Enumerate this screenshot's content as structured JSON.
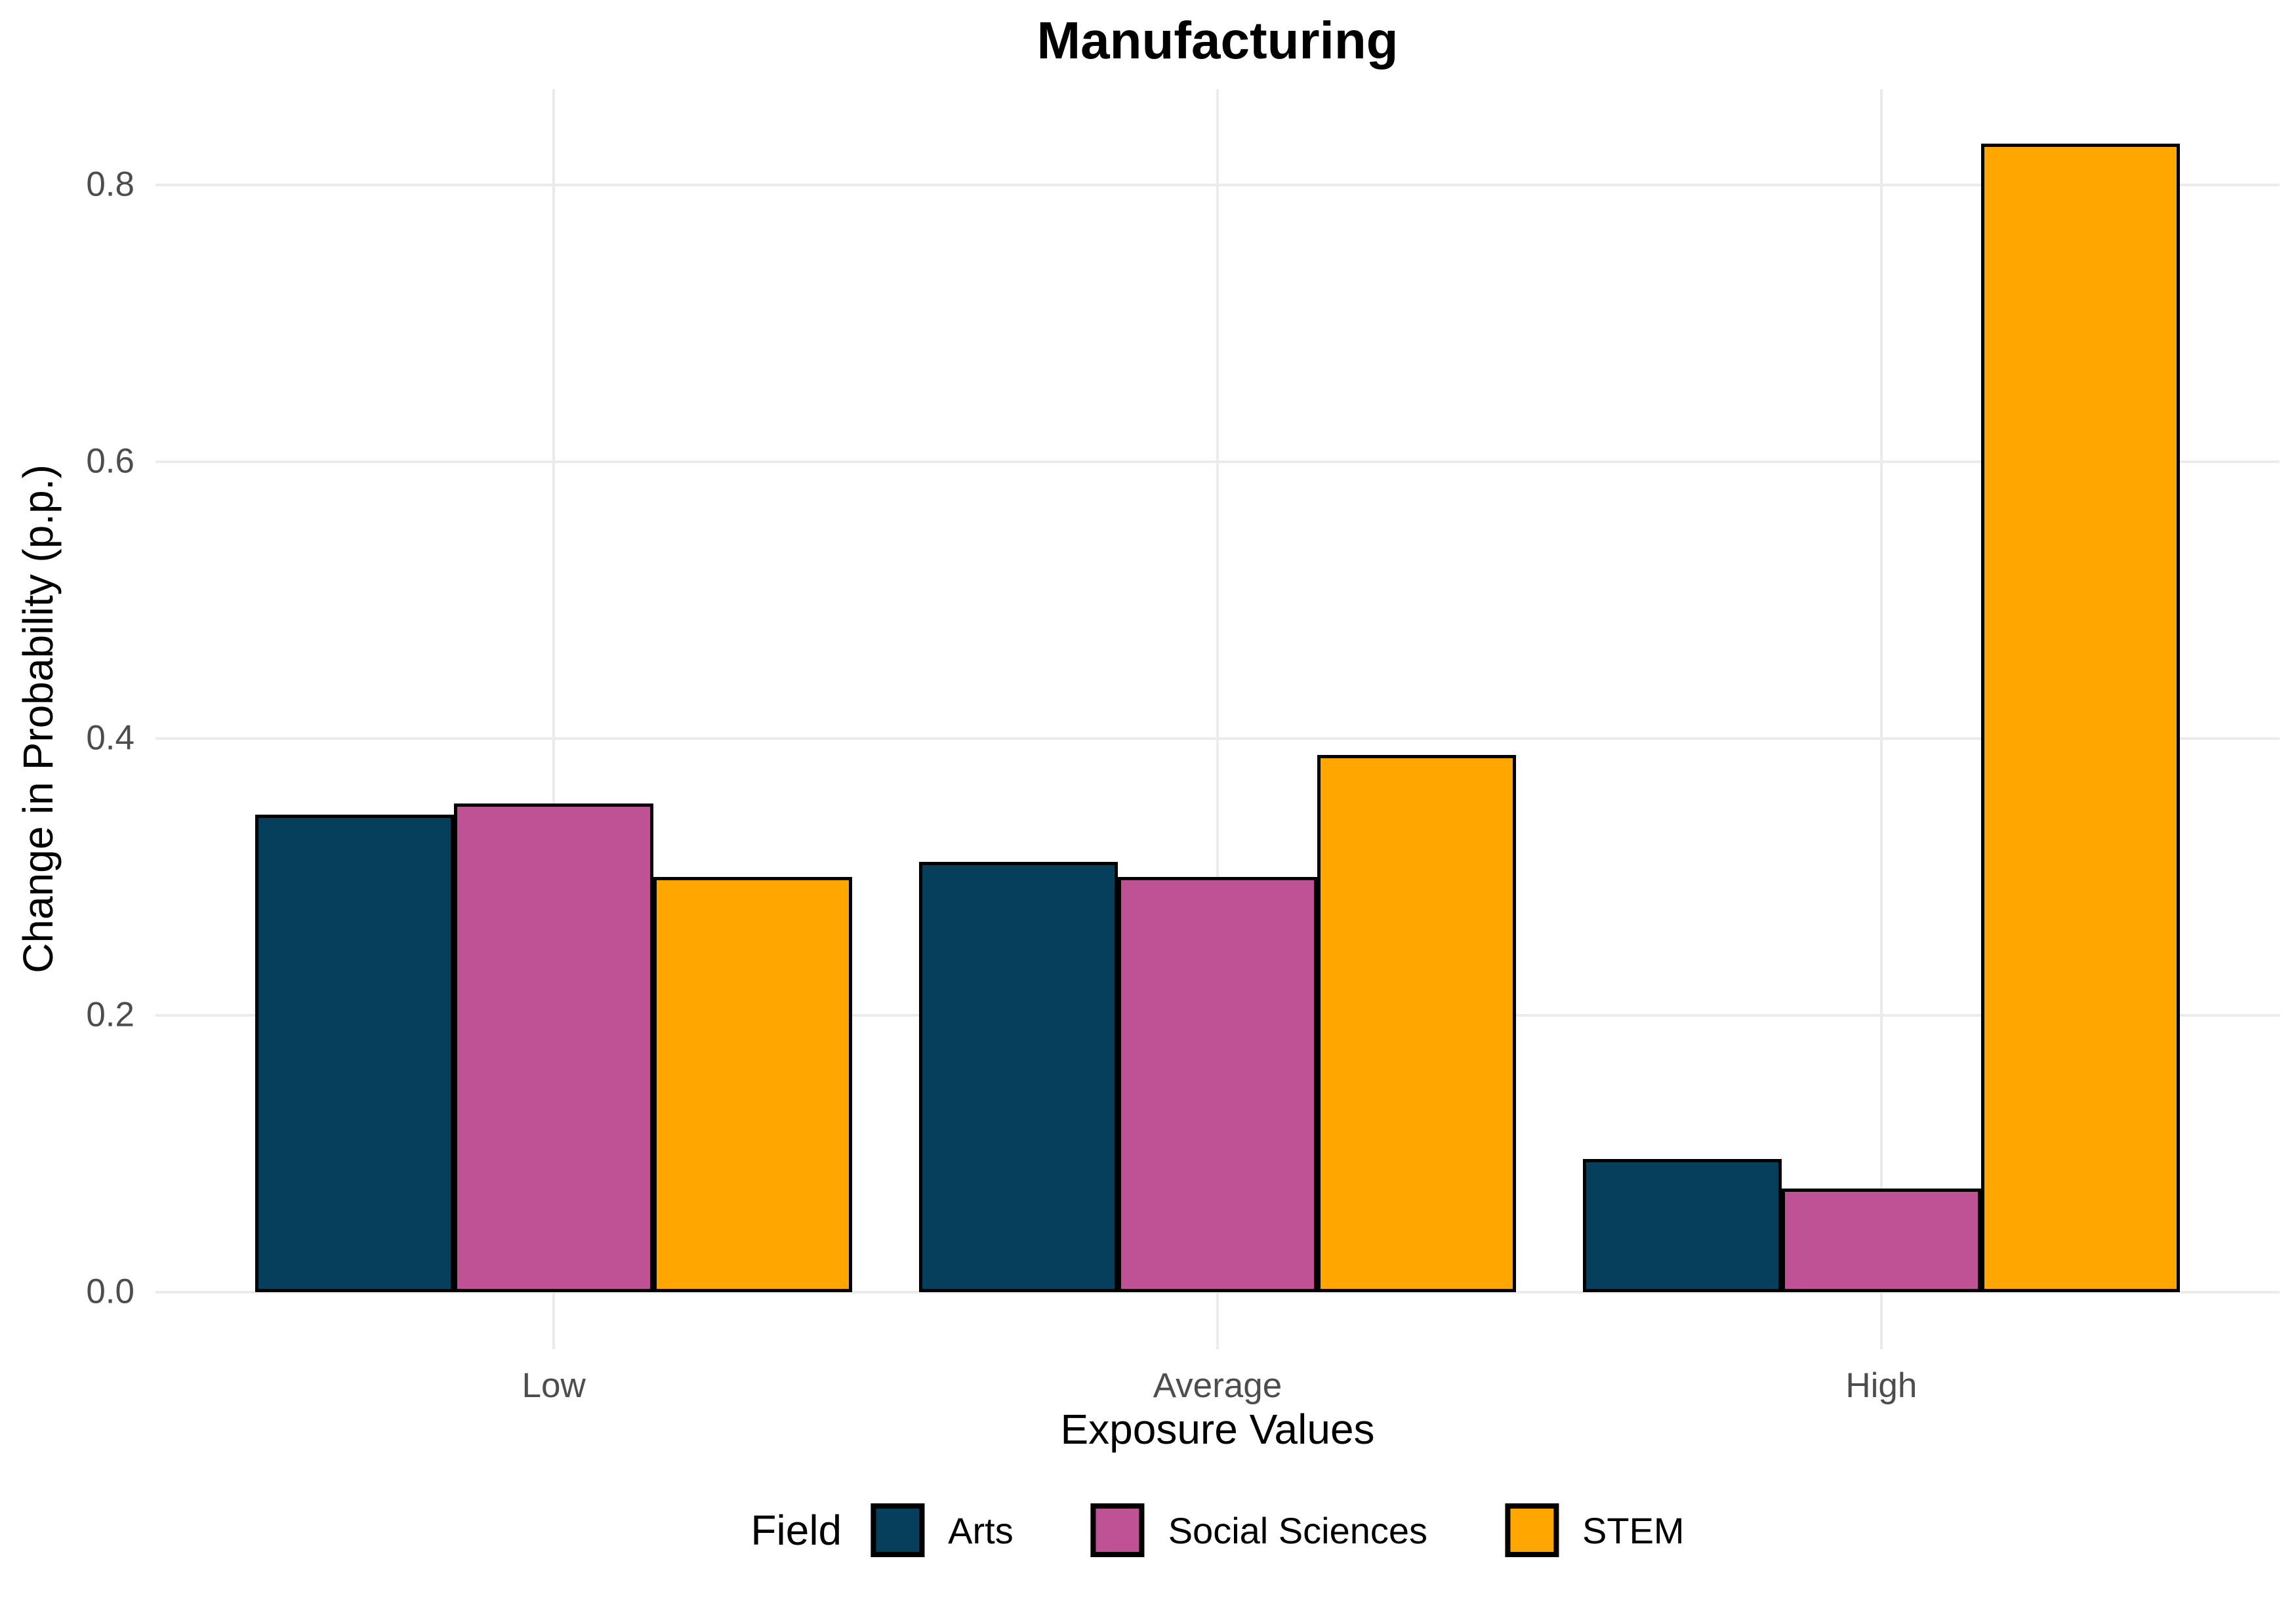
{
  "chart_data": {
    "type": "bar",
    "title": "Manufacturing",
    "xlabel": "Exposure Values",
    "ylabel": "Change in Probability (p.p.)",
    "legend_title": "Field",
    "legend_position": "bottom",
    "grid": "major gridlines only, light gray #EBEBEB on white panel",
    "categories": [
      "Low",
      "Average",
      "High"
    ],
    "series": [
      {
        "name": "Arts",
        "color": "#063F5C",
        "values": [
          0.345,
          0.311,
          0.096
        ]
      },
      {
        "name": "Social Sciences",
        "color": "#BE5294",
        "values": [
          0.353,
          0.3,
          0.075
        ]
      },
      {
        "name": "STEM",
        "color": "#FFA600",
        "values": [
          0.3,
          0.388,
          0.83
        ]
      }
    ],
    "y_ticks": [
      "0.0",
      "0.2",
      "0.4",
      "0.6",
      "0.8"
    ],
    "ylim": [
      -0.044,
      0.869
    ],
    "bar_outline_color": "#000000",
    "tick_text_color": "#4D4D4D"
  }
}
